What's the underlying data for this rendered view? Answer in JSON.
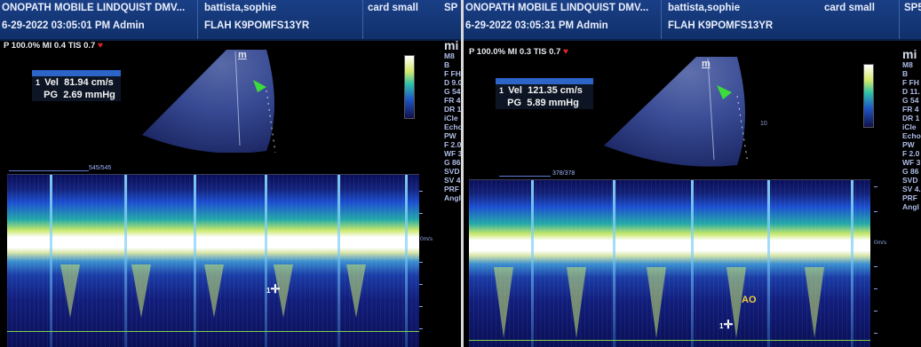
{
  "left": {
    "header": {
      "clinic": "ONOPATH MOBILE LINDQUIST DMV...",
      "patient": "battista,sophie",
      "study": "card small",
      "datetime": "6-29-2022 03:05:01 PM Admin",
      "exam_id": "FLAH K9POMFS13YR",
      "corner": "SP"
    },
    "params": "P 100.0% MI 0.4 TIS 0.7",
    "measurement": {
      "n": "1",
      "vel_label": "Vel",
      "vel_value": "81.94 cm/s",
      "pg_label": "PG",
      "pg_value": "2.69 mmHg"
    },
    "probe_marker": "m",
    "frame_counter": "545/545",
    "side": [
      "mi",
      "M8",
      "B",
      "F FH",
      "D 9.0",
      "G 54",
      "FR 4",
      "DR 1",
      "iCle",
      "Echo",
      "PW",
      "F 2.0",
      "WF 3",
      "G 86",
      "SVD",
      "SV 4",
      "PRF",
      "Angl"
    ],
    "axis_unit": "0m/s",
    "cursor_label": "1"
  },
  "right": {
    "header": {
      "clinic": "ONOPATH MOBILE LINDQUIST DMV...",
      "patient": "battista,sophie",
      "study": "card small",
      "datetime": "6-29-2022 03:05:31 PM Admin",
      "exam_id": "FLAH K9POMFS13YR",
      "corner": "SP5"
    },
    "params": "P 100.0% MI 0.3 TIS 0.7",
    "measurement": {
      "n": "1",
      "vel_label": "Vel",
      "vel_value": "121.35 cm/s",
      "pg_label": "PG",
      "pg_value": "5.89 mmHg"
    },
    "probe_marker": "m",
    "frame_counter": "378/378",
    "side": [
      "mi",
      "M8",
      "B",
      "F FH",
      "D 11.",
      "G 54",
      "FR 4",
      "DR 1",
      "iCle",
      "Echo",
      "PW",
      "F 2.0",
      "WF 3",
      "G 86",
      "SVD",
      "SV 4.",
      "PRF",
      "Angl"
    ],
    "axis_unit": "0m/s",
    "cursor_label": "1",
    "annotation": "AO",
    "depth_label": "10"
  },
  "colors": {
    "header_blue": "#1a3f86",
    "baseline_green": "#7fd24a",
    "annotation_yellow": "#f5d13a",
    "heart_red": "#e12525"
  }
}
